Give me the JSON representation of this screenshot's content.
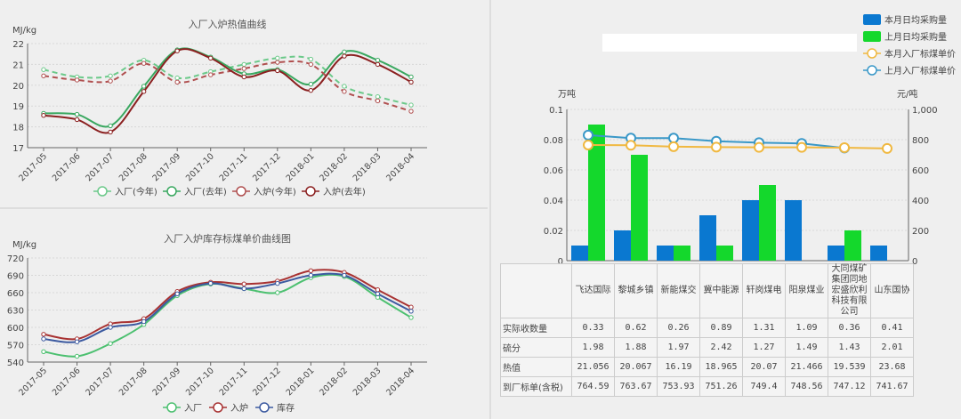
{
  "chart_data": [
    {
      "type": "line",
      "title": "入厂入炉热值曲线",
      "ylabel": "MJ/kg",
      "ylim": [
        17,
        22
      ],
      "yticks": [
        17,
        18,
        19,
        20,
        21,
        22
      ],
      "categories": [
        "2017-05",
        "2017-06",
        "2017-07",
        "2017-08",
        "2017-09",
        "2017-10",
        "2017-11",
        "2017-12",
        "2018-01",
        "2018-02",
        "2018-03",
        "2018-04"
      ],
      "series": [
        {
          "name": "入厂(今年)",
          "color": "#6cc98a",
          "dashed": true,
          "values": [
            20.75,
            20.4,
            20.45,
            21.2,
            20.35,
            20.65,
            21.0,
            21.3,
            21.25,
            19.95,
            19.45,
            19.05
          ]
        },
        {
          "name": "入厂(去年)",
          "color": "#3aa860",
          "dashed": false,
          "values": [
            18.65,
            18.6,
            18.05,
            19.95,
            21.7,
            21.35,
            20.55,
            20.75,
            20.05,
            21.6,
            21.2,
            20.4
          ]
        },
        {
          "name": "入炉(今年)",
          "color": "#b05050",
          "dashed": true,
          "values": [
            20.45,
            20.25,
            20.2,
            21.05,
            20.15,
            20.5,
            20.8,
            21.1,
            21.0,
            19.7,
            19.25,
            18.75
          ]
        },
        {
          "name": "入炉(去年)",
          "color": "#8b2020",
          "dashed": false,
          "values": [
            18.55,
            18.35,
            17.75,
            19.7,
            21.65,
            21.3,
            20.4,
            20.7,
            19.75,
            21.4,
            21.0,
            20.15
          ]
        }
      ],
      "legend": "bottom"
    },
    {
      "type": "line",
      "title": "入厂入炉库存标煤单价曲线图",
      "ylabel": "MJ/kg",
      "ylim": [
        540,
        720
      ],
      "yticks": [
        540,
        570,
        600,
        630,
        660,
        690,
        720
      ],
      "categories": [
        "2017-05",
        "2017-06",
        "2017-07",
        "2017-08",
        "2017-09",
        "2017-10",
        "2017-11",
        "2017-12",
        "2018-01",
        "2018-02",
        "2018-03",
        "2018-04"
      ],
      "series": [
        {
          "name": "入厂",
          "color": "#4cc070",
          "values": [
            558,
            550,
            572,
            605,
            655,
            675,
            667,
            660,
            686,
            688,
            652,
            617
          ]
        },
        {
          "name": "入炉",
          "color": "#a83232",
          "values": [
            588,
            580,
            606,
            615,
            662,
            678,
            675,
            680,
            698,
            695,
            665,
            635
          ]
        },
        {
          "name": "库存",
          "color": "#3c5aa0",
          "values": [
            580,
            575,
            600,
            610,
            658,
            676,
            667,
            676,
            690,
            690,
            658,
            628
          ]
        }
      ],
      "legend": "bottom"
    },
    {
      "type": "bar",
      "ylabel": "万吨",
      "y2label": "元/吨",
      "ylim": [
        0,
        0.1
      ],
      "yticks": [
        "0",
        "0.02",
        "0.04",
        "0.06",
        "0.08",
        "0.1"
      ],
      "y2lim": [
        0,
        1000
      ],
      "y2ticks": [
        "0",
        "200",
        "400",
        "600",
        "800",
        "1,000"
      ],
      "categories": [
        "飞达国际",
        "黎城乡镇",
        "新能煤交",
        "冀中能源",
        "轩岗煤电",
        "阳泉煤业",
        "大同煤矿集团同地宏盛欣利科技有限公司",
        "山东国协"
      ],
      "series": [
        {
          "name": "本月日均采购量",
          "type": "bar",
          "color": "#0a78d0",
          "values": [
            0.01,
            0.02,
            0.01,
            0.03,
            0.04,
            0.04,
            0.01,
            0.01
          ]
        },
        {
          "name": "上月日均采购量",
          "type": "bar",
          "color": "#14d82c",
          "values": [
            0.09,
            0.07,
            0.01,
            0.01,
            0.05,
            0,
            0.02,
            0
          ]
        },
        {
          "name": "本月入厂标煤单价",
          "type": "line",
          "axis": "right",
          "color": "#f0b840",
          "values": [
            765,
            763,
            754,
            751,
            749,
            749,
            747,
            742
          ]
        },
        {
          "name": "上月入厂标煤单价",
          "type": "line",
          "axis": "right",
          "color": "#3a98c8",
          "values": [
            830,
            810,
            810,
            790,
            780,
            775,
            745,
            null
          ]
        }
      ],
      "legend": "top-right"
    }
  ],
  "table": {
    "columns": [
      "飞达国际",
      "黎城乡镇",
      "新能煤交",
      "冀中能源",
      "轩岗煤电",
      "阳泉煤业",
      "大同煤矿集团同地宏盛欣利科技有限公司",
      "山东国协"
    ],
    "rows": [
      {
        "label": "实际收数量",
        "values": [
          "0.33",
          "0.62",
          "0.26",
          "0.89",
          "1.31",
          "1.09",
          "0.36",
          "0.41"
        ]
      },
      {
        "label": "硫分",
        "values": [
          "1.98",
          "1.88",
          "1.97",
          "2.42",
          "1.27",
          "1.49",
          "1.43",
          "2.01"
        ]
      },
      {
        "label": "热值",
        "values": [
          "21.056",
          "20.067",
          "16.19",
          "18.965",
          "20.07",
          "21.466",
          "19.539",
          "23.68"
        ]
      },
      {
        "label": "到厂标单(含税)",
        "values": [
          "764.59",
          "763.67",
          "753.93",
          "751.26",
          "749.4",
          "748.56",
          "747.12",
          "741.67"
        ]
      }
    ]
  }
}
